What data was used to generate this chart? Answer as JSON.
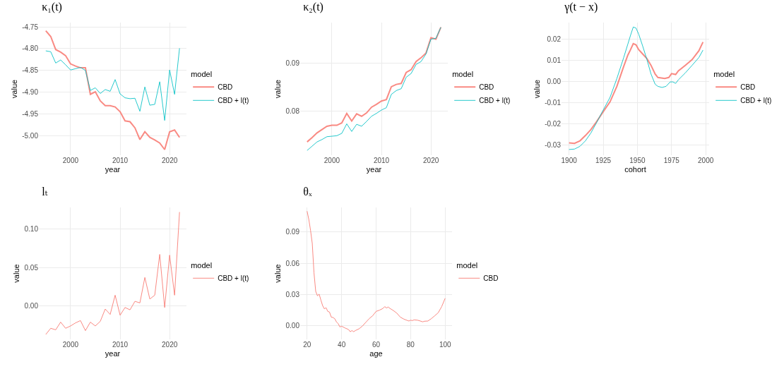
{
  "chart_data": [
    {
      "type": "line",
      "title": "κ₁(t)",
      "xlabel": "year",
      "ylabel": "value",
      "legend_title": "model",
      "legend": "right",
      "grid": true,
      "x": [
        1995,
        1996,
        1997,
        1998,
        1999,
        2000,
        2001,
        2002,
        2003,
        2004,
        2005,
        2006,
        2007,
        2008,
        2009,
        2010,
        2011,
        2012,
        2013,
        2014,
        2015,
        2016,
        2017,
        2018,
        2019,
        2020,
        2021,
        2022
      ],
      "xlim": [
        1993.6,
        2023.4
      ],
      "xticks": [
        2000,
        2010,
        2020
      ],
      "ylim": [
        -5.045,
        -4.74
      ],
      "yticks": [
        {
          "value": -5.0,
          "label": "-5.00"
        },
        {
          "value": -4.95,
          "label": "-4.95"
        },
        {
          "value": -4.9,
          "label": "-4.90"
        },
        {
          "value": -4.85,
          "label": "-4.85"
        },
        {
          "value": -4.8,
          "label": "-4.80"
        },
        {
          "value": -4.75,
          "label": "-4.75"
        }
      ],
      "series": [
        {
          "name": "CBD",
          "color": "#f8766d",
          "values": [
            -4.759,
            -4.772,
            -4.802,
            -4.808,
            -4.816,
            -4.835,
            -4.84,
            -4.844,
            -4.844,
            -4.905,
            -4.899,
            -4.92,
            -4.931,
            -4.931,
            -4.934,
            -4.945,
            -4.966,
            -4.968,
            -4.982,
            -5.009,
            -4.991,
            -5.004,
            -5.01,
            -5.017,
            -5.032,
            -4.991,
            -4.987,
            -5.004
          ]
        },
        {
          "name": "CBD + l(t)",
          "color": "#00bfc4",
          "values": [
            -4.805,
            -4.807,
            -4.833,
            -4.826,
            -4.837,
            -4.849,
            -4.846,
            -4.843,
            -4.85,
            -4.896,
            -4.89,
            -4.903,
            -4.894,
            -4.898,
            -4.871,
            -4.904,
            -4.913,
            -4.915,
            -4.914,
            -4.944,
            -4.888,
            -4.93,
            -4.928,
            -4.876,
            -4.965,
            -4.849,
            -4.905,
            -4.799
          ]
        }
      ]
    },
    {
      "type": "line",
      "title": "κ₂(t)",
      "xlabel": "year",
      "ylabel": "value",
      "legend_title": "model",
      "legend": "right",
      "grid": true,
      "x": [
        1995,
        1996,
        1997,
        1998,
        1999,
        2000,
        2001,
        2002,
        2003,
        2004,
        2005,
        2006,
        2007,
        2008,
        2009,
        2010,
        2011,
        2012,
        2013,
        2014,
        2015,
        2016,
        2017,
        2018,
        2019,
        2020,
        2021,
        2022
      ],
      "xlim": [
        1993.6,
        2023.4
      ],
      "xticks": [
        2000,
        2010,
        2020
      ],
      "ylim": [
        0.0707,
        0.0986
      ],
      "yticks": [
        {
          "value": 0.08,
          "label": "0.08"
        },
        {
          "value": 0.09,
          "label": "0.09"
        }
      ],
      "series": [
        {
          "name": "CBD",
          "color": "#f8766d",
          "values": [
            0.0735,
            0.0744,
            0.0754,
            0.0761,
            0.0768,
            0.077,
            0.077,
            0.0775,
            0.0795,
            0.0779,
            0.0794,
            0.0789,
            0.0796,
            0.0808,
            0.0814,
            0.0821,
            0.0824,
            0.0851,
            0.0856,
            0.0858,
            0.0881,
            0.0887,
            0.0904,
            0.0912,
            0.0922,
            0.0954,
            0.0951,
            0.0976
          ]
        },
        {
          "name": "CBD + l(t)",
          "color": "#00bfc4",
          "values": [
            0.0717,
            0.0726,
            0.0735,
            0.074,
            0.0746,
            0.0747,
            0.0748,
            0.0753,
            0.0773,
            0.0757,
            0.0772,
            0.0768,
            0.0778,
            0.0789,
            0.0795,
            0.0802,
            0.0807,
            0.0835,
            0.0843,
            0.0847,
            0.0871,
            0.0879,
            0.0898,
            0.0904,
            0.092,
            0.0951,
            0.0953,
            0.0976
          ]
        }
      ]
    },
    {
      "type": "line",
      "title": "γ(t − x)",
      "xlabel": "cohort",
      "ylabel": "value",
      "legend_title": "model",
      "legend": "right",
      "grid": true,
      "xlim": [
        1894.5,
        2002.5
      ],
      "xticks": [
        1900,
        1925,
        1950,
        1975,
        2000
      ],
      "ylim": [
        -0.0347,
        0.0279
      ],
      "yticks": [
        {
          "value": -0.03,
          "label": "-0.03"
        },
        {
          "value": -0.02,
          "label": "-0.02"
        },
        {
          "value": -0.01,
          "label": "-0.01"
        },
        {
          "value": 0,
          "label": "0.00"
        },
        {
          "value": 0.01,
          "label": "0.01"
        },
        {
          "value": 0.02,
          "label": "0.02"
        }
      ],
      "series": [
        {
          "name": "CBD",
          "color": "#f8766d",
          "x": [
            1900,
            1904,
            1908,
            1912,
            1916,
            1920,
            1925,
            1930,
            1935,
            1940,
            1943,
            1945,
            1947,
            1949,
            1951,
            1954,
            1957,
            1960,
            1963,
            1965,
            1970,
            1973,
            1975,
            1978,
            1980,
            1985,
            1990,
            1995,
            1998
          ],
          "values": [
            -0.0289,
            -0.0291,
            -0.0279,
            -0.0254,
            -0.0226,
            -0.019,
            -0.0142,
            -0.0095,
            -0.0022,
            0.0072,
            0.0125,
            0.0151,
            0.018,
            0.0174,
            0.0151,
            0.013,
            0.0109,
            0.0077,
            0.0036,
            0.002,
            0.0015,
            0.002,
            0.0038,
            0.0034,
            0.0051,
            0.0077,
            0.0104,
            0.0146,
            0.0187
          ]
        },
        {
          "name": "CBD + l(t)",
          "color": "#00bfc4",
          "x": [
            1900,
            1904,
            1908,
            1912,
            1916,
            1920,
            1925,
            1930,
            1935,
            1940,
            1943,
            1945,
            1947,
            1949,
            1951,
            1954,
            1957,
            1960,
            1963,
            1965,
            1968,
            1971,
            1974,
            1976,
            1978,
            1980,
            1985,
            1990,
            1995,
            1998
          ],
          "values": [
            -0.032,
            -0.0318,
            -0.0305,
            -0.0279,
            -0.0242,
            -0.0195,
            -0.0134,
            -0.0074,
            0.0015,
            0.0114,
            0.0177,
            0.0219,
            0.0258,
            0.0253,
            0.0224,
            0.0166,
            0.0104,
            0.0036,
            -0.0012,
            -0.0022,
            -0.0027,
            -0.0022,
            -0.0001,
            -0.0001,
            -0.0008,
            0.0009,
            0.0041,
            0.0077,
            0.0114,
            0.0149
          ]
        }
      ]
    },
    {
      "type": "line",
      "title": "lₜ",
      "xlabel": "year",
      "ylabel": "value",
      "legend_title": "model",
      "legend": "right",
      "grid": true,
      "x": [
        1995,
        1996,
        1997,
        1998,
        1999,
        2000,
        2001,
        2002,
        2003,
        2004,
        2005,
        2006,
        2007,
        2008,
        2009,
        2010,
        2011,
        2012,
        2013,
        2014,
        2015,
        2016,
        2017,
        2018,
        2019,
        2020,
        2021,
        2022
      ],
      "xlim": [
        1993.6,
        2023.4
      ],
      "xticks": [
        2000,
        2010,
        2020
      ],
      "ylim": [
        -0.0434,
        0.128
      ],
      "yticks": [
        {
          "value": 0,
          "label": "0.00"
        },
        {
          "value": 0.05,
          "label": "0.05"
        },
        {
          "value": 0.1,
          "label": "0.10"
        }
      ],
      "series": [
        {
          "name": "CBD + l(t)",
          "color": "#f8766d",
          "values": [
            -0.037,
            -0.029,
            -0.031,
            -0.021,
            -0.029,
            -0.026,
            -0.022,
            -0.019,
            -0.032,
            -0.021,
            -0.026,
            -0.02,
            -0.004,
            -0.011,
            0.014,
            -0.012,
            -0.002,
            -0.005,
            0.006,
            0.004,
            0.037,
            0.009,
            0.014,
            0.067,
            -0.002,
            0.066,
            0.014,
            0.122
          ]
        }
      ]
    },
    {
      "type": "line",
      "title": "θₓ",
      "xlabel": "age",
      "ylabel": "value",
      "legend_title": "model",
      "legend": "right",
      "grid": true,
      "xlim": [
        16,
        104
      ],
      "xticks": [
        20,
        40,
        60,
        80,
        100
      ],
      "ylim": [
        -0.0135,
        0.1138
      ],
      "yticks": [
        {
          "value": 0,
          "label": "0.00"
        },
        {
          "value": 0.03,
          "label": "0.03"
        },
        {
          "value": 0.06,
          "label": "0.06"
        },
        {
          "value": 0.09,
          "label": "0.09"
        }
      ],
      "series": [
        {
          "name": "CBD",
          "color": "#f8766d",
          "x": [
            20,
            21,
            22,
            23,
            24,
            25,
            26,
            27,
            28,
            29,
            30,
            31,
            32,
            33,
            34,
            35,
            36,
            37,
            38,
            39,
            40,
            42,
            44,
            45,
            46,
            47,
            48,
            50,
            52,
            54,
            56,
            58,
            60,
            62,
            64,
            65,
            66,
            67,
            68,
            70,
            72,
            74,
            76,
            78,
            79,
            80,
            81,
            82,
            84,
            86,
            87,
            88,
            90,
            92,
            94,
            96,
            98,
            100
          ],
          "values": [
            0.1102,
            0.1022,
            0.0917,
            0.0791,
            0.0507,
            0.0328,
            0.0286,
            0.0301,
            0.0244,
            0.0191,
            0.016,
            0.017,
            0.0135,
            0.0128,
            0.008,
            0.0076,
            0.0065,
            0.0034,
            0.0017,
            -0.0015,
            -0.0008,
            -0.0025,
            -0.004,
            -0.0061,
            -0.005,
            -0.0061,
            -0.005,
            -0.0034,
            -0.0008,
            0.0029,
            0.0065,
            0.0093,
            0.0135,
            0.0147,
            0.0164,
            0.0181,
            0.0168,
            0.0177,
            0.0164,
            0.0143,
            0.0118,
            0.008,
            0.0061,
            0.0048,
            0.0042,
            0.005,
            0.0046,
            0.0053,
            0.005,
            0.004,
            0.0034,
            0.004,
            0.0042,
            0.0065,
            0.0093,
            0.0122,
            0.0181,
            0.0261
          ]
        }
      ]
    }
  ]
}
